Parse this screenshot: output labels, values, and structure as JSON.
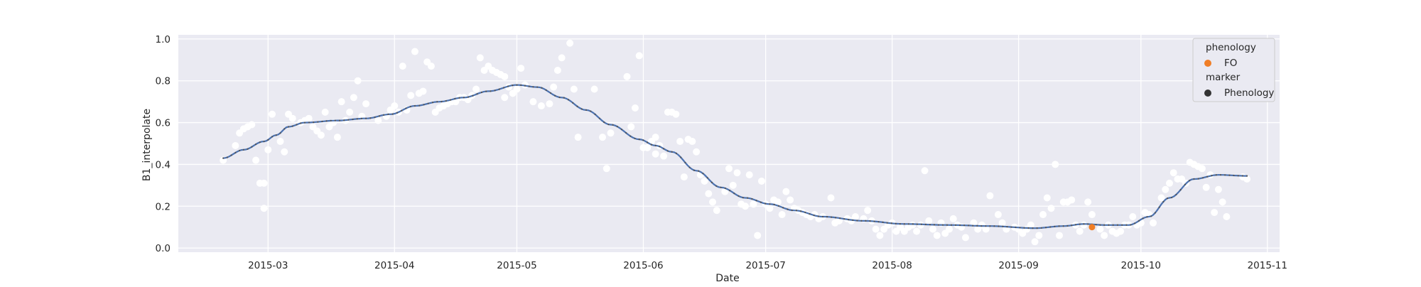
{
  "chart_data": {
    "type": "scatter",
    "xlabel": "Date",
    "ylabel": "B1_interpolate",
    "x_start": "2015-02-07",
    "x_end": "2015-11-04",
    "xticks": [
      "2015-03",
      "2015-04",
      "2015-05",
      "2015-06",
      "2015-07",
      "2015-08",
      "2015-09",
      "2015-10",
      "2015-11"
    ],
    "ylim": [
      -0.02,
      1.02
    ],
    "yticks": [
      "0.0",
      "0.2",
      "0.4",
      "0.6",
      "0.8",
      "1.0"
    ],
    "grid": true,
    "legend_position": "top-right",
    "colors": {
      "background": "#eaeaf2",
      "grid": "#ffffff",
      "raw_points": "#ffffff",
      "smoothed_line": "#4c72b0",
      "smoothed_markers": "#555555",
      "phenology_fo": "#f07e26",
      "marker_legend": "#333333"
    },
    "series": [
      {
        "role": "raw_points",
        "points": [
          [
            "2015-02-18",
            0.42
          ],
          [
            "2015-02-21",
            0.49
          ],
          [
            "2015-02-22",
            0.55
          ],
          [
            "2015-02-23",
            0.57
          ],
          [
            "2015-02-24",
            0.58
          ],
          [
            "2015-02-25",
            0.59
          ],
          [
            "2015-02-26",
            0.42
          ],
          [
            "2015-02-27",
            0.31
          ],
          [
            "2015-02-28",
            0.19
          ],
          [
            "2015-02-28",
            0.31
          ],
          [
            "2015-03-01",
            0.47
          ],
          [
            "2015-03-02",
            0.64
          ],
          [
            "2015-03-04",
            0.51
          ],
          [
            "2015-03-05",
            0.46
          ],
          [
            "2015-03-06",
            0.64
          ],
          [
            "2015-03-07",
            0.62
          ],
          [
            "2015-03-09",
            0.6
          ],
          [
            "2015-03-10",
            0.61
          ],
          [
            "2015-03-11",
            0.62
          ],
          [
            "2015-03-12",
            0.58
          ],
          [
            "2015-03-13",
            0.56
          ],
          [
            "2015-03-14",
            0.54
          ],
          [
            "2015-03-15",
            0.65
          ],
          [
            "2015-03-16",
            0.58
          ],
          [
            "2015-03-17",
            0.6
          ],
          [
            "2015-03-18",
            0.53
          ],
          [
            "2015-03-19",
            0.7
          ],
          [
            "2015-03-20",
            0.61
          ],
          [
            "2015-03-21",
            0.65
          ],
          [
            "2015-03-22",
            0.72
          ],
          [
            "2015-03-23",
            0.8
          ],
          [
            "2015-03-24",
            0.63
          ],
          [
            "2015-03-25",
            0.69
          ],
          [
            "2015-03-28",
            0.61
          ],
          [
            "2015-03-30",
            0.63
          ],
          [
            "2015-03-31",
            0.66
          ],
          [
            "2015-04-01",
            0.68
          ],
          [
            "2015-04-02",
            0.65
          ],
          [
            "2015-04-03",
            0.87
          ],
          [
            "2015-04-04",
            0.66
          ],
          [
            "2015-04-05",
            0.73
          ],
          [
            "2015-04-06",
            0.94
          ],
          [
            "2015-04-07",
            0.74
          ],
          [
            "2015-04-08",
            0.75
          ],
          [
            "2015-04-09",
            0.89
          ],
          [
            "2015-04-10",
            0.87
          ],
          [
            "2015-04-11",
            0.65
          ],
          [
            "2015-04-12",
            0.67
          ],
          [
            "2015-04-13",
            0.68
          ],
          [
            "2015-04-14",
            0.69
          ],
          [
            "2015-04-15",
            0.7
          ],
          [
            "2015-04-16",
            0.7
          ],
          [
            "2015-04-17",
            0.72
          ],
          [
            "2015-04-18",
            0.72
          ],
          [
            "2015-04-19",
            0.71
          ],
          [
            "2015-04-20",
            0.73
          ],
          [
            "2015-04-21",
            0.76
          ],
          [
            "2015-04-22",
            0.91
          ],
          [
            "2015-04-23",
            0.85
          ],
          [
            "2015-04-24",
            0.87
          ],
          [
            "2015-04-25",
            0.85
          ],
          [
            "2015-04-26",
            0.84
          ],
          [
            "2015-04-27",
            0.83
          ],
          [
            "2015-04-28",
            0.82
          ],
          [
            "2015-04-28",
            0.72
          ],
          [
            "2015-04-29",
            0.77
          ],
          [
            "2015-04-30",
            0.74
          ],
          [
            "2015-05-01",
            0.76
          ],
          [
            "2015-05-02",
            0.86
          ],
          [
            "2015-05-03",
            0.78
          ],
          [
            "2015-05-05",
            0.7
          ],
          [
            "2015-05-07",
            0.68
          ],
          [
            "2015-05-09",
            0.69
          ],
          [
            "2015-05-10",
            0.77
          ],
          [
            "2015-05-11",
            0.85
          ],
          [
            "2015-05-12",
            0.91
          ],
          [
            "2015-05-14",
            0.98
          ],
          [
            "2015-05-15",
            0.76
          ],
          [
            "2015-05-16",
            0.53
          ],
          [
            "2015-05-20",
            0.76
          ],
          [
            "2015-05-22",
            0.53
          ],
          [
            "2015-05-23",
            0.38
          ],
          [
            "2015-05-24",
            0.55
          ],
          [
            "2015-05-28",
            0.82
          ],
          [
            "2015-05-29",
            0.58
          ],
          [
            "2015-05-30",
            0.67
          ],
          [
            "2015-05-31",
            0.92
          ],
          [
            "2015-06-01",
            0.48
          ],
          [
            "2015-06-02",
            0.48
          ],
          [
            "2015-06-03",
            0.51
          ],
          [
            "2015-06-04",
            0.45
          ],
          [
            "2015-06-04",
            0.53
          ],
          [
            "2015-06-05",
            0.49
          ],
          [
            "2015-06-06",
            0.44
          ],
          [
            "2015-06-07",
            0.65
          ],
          [
            "2015-06-08",
            0.65
          ],
          [
            "2015-06-09",
            0.64
          ],
          [
            "2015-06-10",
            0.51
          ],
          [
            "2015-06-11",
            0.34
          ],
          [
            "2015-06-12",
            0.52
          ],
          [
            "2015-06-13",
            0.51
          ],
          [
            "2015-06-14",
            0.46
          ],
          [
            "2015-06-15",
            0.35
          ],
          [
            "2015-06-16",
            0.32
          ],
          [
            "2015-06-17",
            0.26
          ],
          [
            "2015-06-18",
            0.22
          ],
          [
            "2015-06-19",
            0.18
          ],
          [
            "2015-06-21",
            0.27
          ],
          [
            "2015-06-22",
            0.38
          ],
          [
            "2015-06-23",
            0.3
          ],
          [
            "2015-06-24",
            0.36
          ],
          [
            "2015-06-25",
            0.21
          ],
          [
            "2015-06-26",
            0.2
          ],
          [
            "2015-06-27",
            0.35
          ],
          [
            "2015-06-28",
            0.21
          ],
          [
            "2015-06-29",
            0.06
          ],
          [
            "2015-06-30",
            0.32
          ],
          [
            "2015-07-01",
            0.21
          ],
          [
            "2015-07-02",
            0.19
          ],
          [
            "2015-07-03",
            0.23
          ],
          [
            "2015-07-04",
            0.22
          ],
          [
            "2015-07-05",
            0.16
          ],
          [
            "2015-07-06",
            0.27
          ],
          [
            "2015-07-07",
            0.23
          ],
          [
            "2015-07-08",
            0.19
          ],
          [
            "2015-07-09",
            0.18
          ],
          [
            "2015-07-10",
            0.17
          ],
          [
            "2015-07-11",
            0.16
          ],
          [
            "2015-07-12",
            0.15
          ],
          [
            "2015-07-13",
            0.16
          ],
          [
            "2015-07-14",
            0.14
          ],
          [
            "2015-07-15",
            0.15
          ],
          [
            "2015-07-17",
            0.24
          ],
          [
            "2015-07-18",
            0.12
          ],
          [
            "2015-07-19",
            0.13
          ],
          [
            "2015-07-21",
            0.14
          ],
          [
            "2015-07-22",
            0.13
          ],
          [
            "2015-07-23",
            0.15
          ],
          [
            "2015-07-25",
            0.14
          ],
          [
            "2015-07-26",
            0.18
          ],
          [
            "2015-07-27",
            0.13
          ],
          [
            "2015-07-28",
            0.09
          ],
          [
            "2015-07-29",
            0.06
          ],
          [
            "2015-07-30",
            0.09
          ],
          [
            "2015-07-31",
            0.11
          ],
          [
            "2015-08-01",
            0.12
          ],
          [
            "2015-08-02",
            0.08
          ],
          [
            "2015-08-03",
            0.1
          ],
          [
            "2015-08-04",
            0.08
          ],
          [
            "2015-08-05",
            0.1
          ],
          [
            "2015-08-06",
            0.11
          ],
          [
            "2015-08-07",
            0.08
          ],
          [
            "2015-08-08",
            0.11
          ],
          [
            "2015-08-09",
            0.37
          ],
          [
            "2015-08-10",
            0.13
          ],
          [
            "2015-08-11",
            0.09
          ],
          [
            "2015-08-12",
            0.06
          ],
          [
            "2015-08-13",
            0.12
          ],
          [
            "2015-08-14",
            0.07
          ],
          [
            "2015-08-15",
            0.09
          ],
          [
            "2015-08-16",
            0.14
          ],
          [
            "2015-08-17",
            0.11
          ],
          [
            "2015-08-18",
            0.1
          ],
          [
            "2015-08-19",
            0.05
          ],
          [
            "2015-08-21",
            0.12
          ],
          [
            "2015-08-22",
            0.09
          ],
          [
            "2015-08-23",
            0.11
          ],
          [
            "2015-08-24",
            0.09
          ],
          [
            "2015-08-25",
            0.25
          ],
          [
            "2015-08-27",
            0.16
          ],
          [
            "2015-08-28",
            0.12
          ],
          [
            "2015-08-29",
            0.09
          ],
          [
            "2015-08-31",
            0.1
          ],
          [
            "2015-09-01",
            0.09
          ],
          [
            "2015-09-02",
            0.07
          ],
          [
            "2015-09-03",
            0.09
          ],
          [
            "2015-09-04",
            0.11
          ],
          [
            "2015-09-05",
            0.03
          ],
          [
            "2015-09-06",
            0.06
          ],
          [
            "2015-09-07",
            0.16
          ],
          [
            "2015-09-08",
            0.24
          ],
          [
            "2015-09-09",
            0.19
          ],
          [
            "2015-09-10",
            0.4
          ],
          [
            "2015-09-11",
            0.06
          ],
          [
            "2015-09-12",
            0.22
          ],
          [
            "2015-09-13",
            0.22
          ],
          [
            "2015-09-14",
            0.23
          ],
          [
            "2015-09-15",
            0.11
          ],
          [
            "2015-09-16",
            0.08
          ],
          [
            "2015-09-17",
            0.11
          ],
          [
            "2015-09-18",
            0.22
          ],
          [
            "2015-09-19",
            0.16
          ],
          [
            "2015-09-21",
            0.09
          ],
          [
            "2015-09-22",
            0.06
          ],
          [
            "2015-09-23",
            0.11
          ],
          [
            "2015-09-24",
            0.08
          ],
          [
            "2015-09-25",
            0.07
          ],
          [
            "2015-09-26",
            0.08
          ],
          [
            "2015-09-27",
            0.11
          ],
          [
            "2015-09-28",
            0.11
          ],
          [
            "2015-09-29",
            0.15
          ],
          [
            "2015-09-30",
            0.11
          ],
          [
            "2015-10-01",
            0.12
          ],
          [
            "2015-10-02",
            0.17
          ],
          [
            "2015-10-03",
            0.16
          ],
          [
            "2015-10-04",
            0.12
          ],
          [
            "2015-10-06",
            0.24
          ],
          [
            "2015-10-07",
            0.28
          ],
          [
            "2015-10-08",
            0.31
          ],
          [
            "2015-10-09",
            0.36
          ],
          [
            "2015-10-10",
            0.33
          ],
          [
            "2015-10-11",
            0.33
          ],
          [
            "2015-10-12",
            0.31
          ],
          [
            "2015-10-13",
            0.41
          ],
          [
            "2015-10-14",
            0.4
          ],
          [
            "2015-10-15",
            0.39
          ],
          [
            "2015-10-16",
            0.38
          ],
          [
            "2015-10-17",
            0.29
          ],
          [
            "2015-10-18",
            0.35
          ],
          [
            "2015-10-19",
            0.17
          ],
          [
            "2015-10-20",
            0.28
          ],
          [
            "2015-10-21",
            0.22
          ],
          [
            "2015-10-22",
            0.15
          ],
          [
            "2015-10-26",
            0.34
          ],
          [
            "2015-10-27",
            0.33
          ]
        ]
      },
      {
        "role": "smoothed_line",
        "points": [
          [
            "2015-02-18",
            0.43
          ],
          [
            "2015-02-23",
            0.47
          ],
          [
            "2015-02-28",
            0.51
          ],
          [
            "2015-03-03",
            0.54
          ],
          [
            "2015-03-06",
            0.58
          ],
          [
            "2015-03-10",
            0.6
          ],
          [
            "2015-03-18",
            0.61
          ],
          [
            "2015-03-25",
            0.62
          ],
          [
            "2015-03-31",
            0.64
          ],
          [
            "2015-04-06",
            0.68
          ],
          [
            "2015-04-12",
            0.7
          ],
          [
            "2015-04-18",
            0.72
          ],
          [
            "2015-04-24",
            0.75
          ],
          [
            "2015-05-01",
            0.78
          ],
          [
            "2015-05-06",
            0.77
          ],
          [
            "2015-05-12",
            0.72
          ],
          [
            "2015-05-18",
            0.66
          ],
          [
            "2015-05-24",
            0.59
          ],
          [
            "2015-05-31",
            0.52
          ],
          [
            "2015-06-04",
            0.49
          ],
          [
            "2015-06-08",
            0.46
          ],
          [
            "2015-06-14",
            0.37
          ],
          [
            "2015-06-20",
            0.29
          ],
          [
            "2015-06-26",
            0.24
          ],
          [
            "2015-07-02",
            0.21
          ],
          [
            "2015-07-08",
            0.18
          ],
          [
            "2015-07-15",
            0.15
          ],
          [
            "2015-07-25",
            0.13
          ],
          [
            "2015-08-04",
            0.115
          ],
          [
            "2015-08-15",
            0.11
          ],
          [
            "2015-08-25",
            0.105
          ],
          [
            "2015-09-05",
            0.095
          ],
          [
            "2015-09-12",
            0.105
          ],
          [
            "2015-09-17",
            0.115
          ],
          [
            "2015-09-22",
            0.11
          ],
          [
            "2015-09-28",
            0.11
          ],
          [
            "2015-10-03",
            0.15
          ],
          [
            "2015-10-08",
            0.24
          ],
          [
            "2015-10-14",
            0.33
          ],
          [
            "2015-10-20",
            0.35
          ],
          [
            "2015-10-27",
            0.345
          ]
        ]
      },
      {
        "name": "FO",
        "role": "phenology",
        "points": [
          [
            "2015-09-19",
            0.1
          ]
        ]
      }
    ],
    "legend": {
      "title1": "phenology",
      "entry1": "FO",
      "title2": "marker",
      "entry2": "Phenology"
    }
  }
}
